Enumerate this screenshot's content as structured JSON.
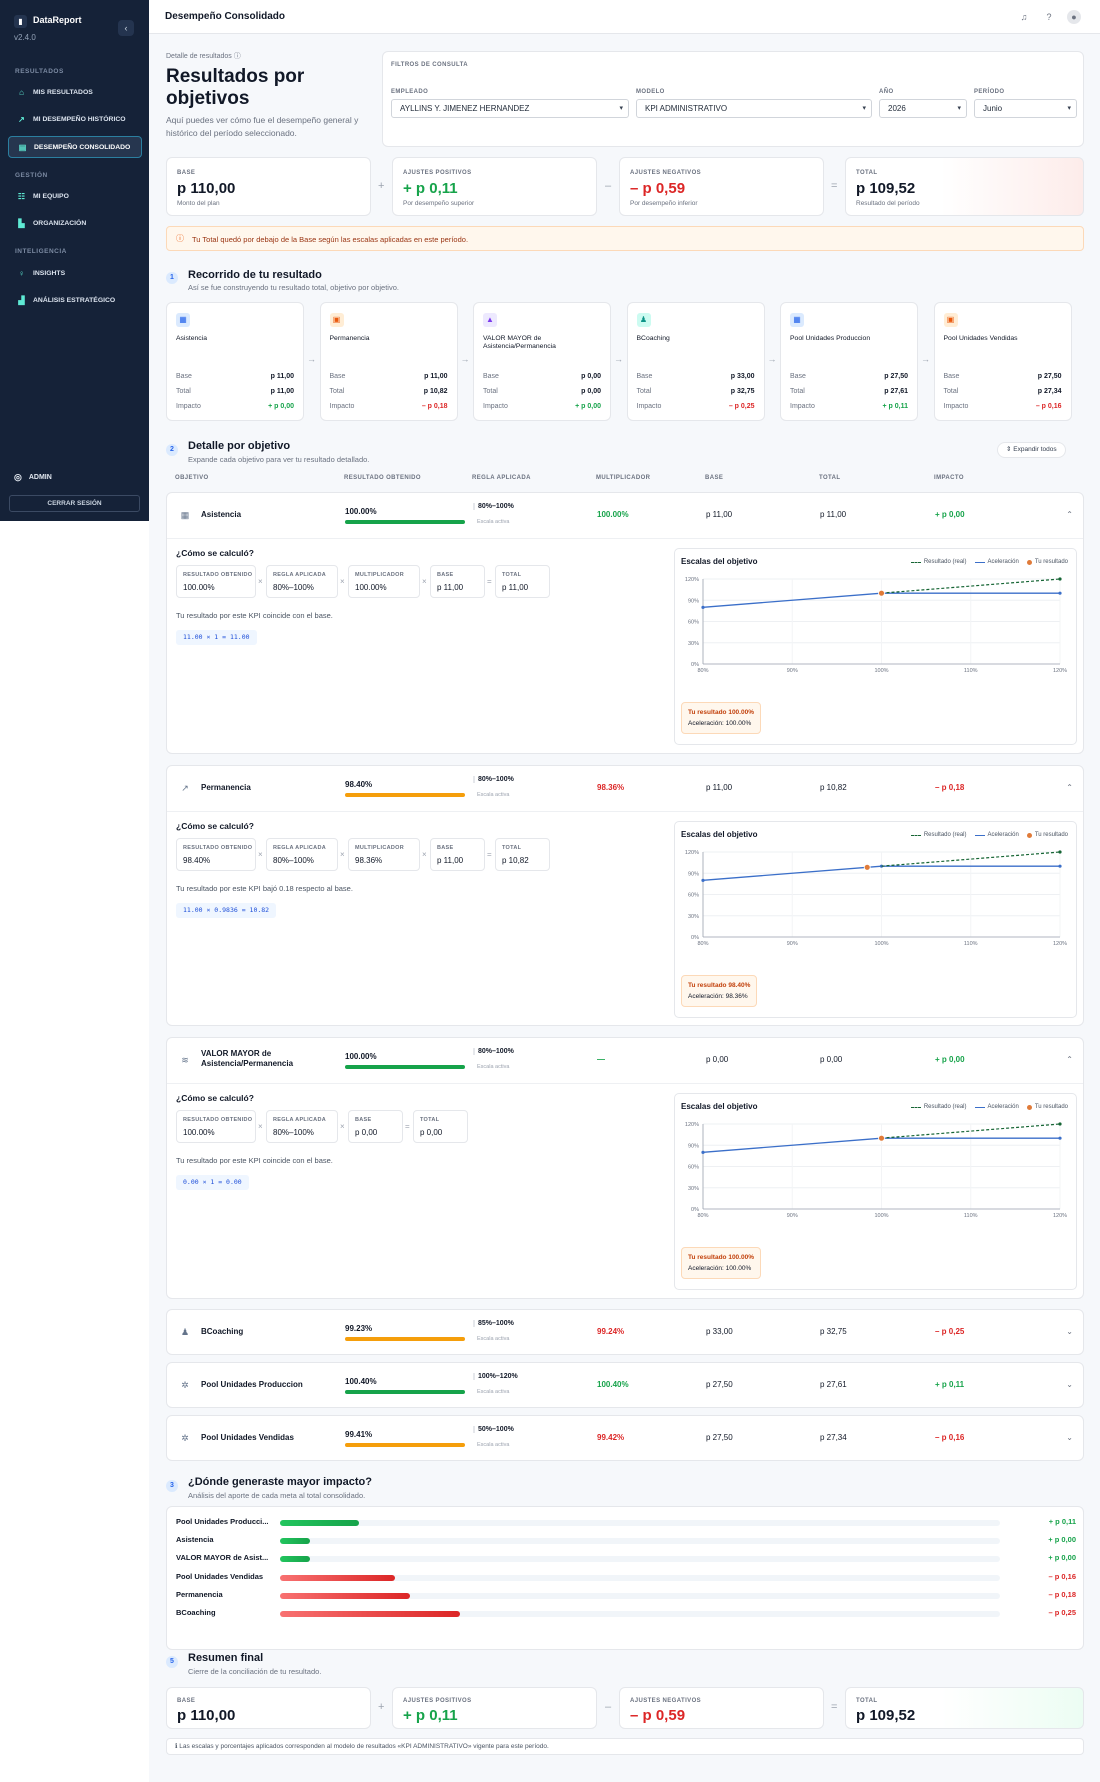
{
  "sidebar": {
    "brand": "DataReport",
    "version": "v2.4.0",
    "sections": [
      "RESULTADOS",
      "GESTIÓN",
      "INTELIGENCIA"
    ],
    "items": [
      {
        "label": "MIS RESULTADOS",
        "icon": "home-icon"
      },
      {
        "label": "MI DESEMPEÑO HISTÓRICO",
        "icon": "trend-icon"
      },
      {
        "label": "DESEMPEÑO CONSOLIDADO",
        "icon": "table-icon",
        "active": true
      },
      {
        "label": "MI EQUIPO",
        "icon": "team-icon"
      },
      {
        "label": "ORGANIZACIÓN",
        "icon": "building-icon"
      },
      {
        "label": "INSIGHTS",
        "icon": "bulb-icon"
      },
      {
        "label": "ANÁLISIS ESTRATÉGICO",
        "icon": "bar-chart-icon"
      }
    ],
    "user": "ADMIN",
    "logout": "CERRAR SESIÓN"
  },
  "topbar": {
    "title": "Desempeño Consolidado"
  },
  "header": {
    "breadcrumb": "Detalle de resultados",
    "title": "Resultados por objetivos",
    "subtitle": "Aquí puedes ver cómo fue el desempeño general y histórico del período seleccionado."
  },
  "filters": {
    "title": "FILTROS DE CONSULTA",
    "empleado_label": "EMPLEADO",
    "empleado_value": "AYLLINS Y. JIMENEZ HERNANDEZ",
    "modelo_label": "MODELO",
    "modelo_value": "KPI ADMINISTRATIVO",
    "anio_label": "AÑO",
    "anio_value": "2026",
    "periodo_label": "PERÍODO",
    "periodo_value": "Junio"
  },
  "summary": {
    "base_label": "BASE",
    "base_value": "p 110,00",
    "base_sub": "Monto del plan",
    "pos_label": "AJUSTES POSITIVOS",
    "pos_value": "+ p 0,11",
    "pos_sub": "Por desempeño superior",
    "neg_label": "AJUSTES NEGATIVOS",
    "neg_value": "– p 0,59",
    "neg_sub": "Por desempeño inferior",
    "total_label": "TOTAL",
    "total_value": "p 109,52",
    "total_sub": "Resultado del período",
    "op_plus": "+",
    "op_minus": "–",
    "op_eq": "="
  },
  "alert": "Tu Total quedó por debajo de la Base según las escalas aplicadas en este período.",
  "journey": {
    "num": "1",
    "title": "Recorrido de tu resultado",
    "subtitle": "Así se fue construyendo tu resultado total, objetivo por objetivo.",
    "row_labels": [
      "Base",
      "Total",
      "Impacto"
    ],
    "steps": [
      {
        "name": "Asistencia",
        "base": "p 11,00",
        "total": "p 11,00",
        "impact": "+ p 0,00",
        "sign": "pos"
      },
      {
        "name": "Permanencia",
        "base": "p 11,00",
        "total": "p 10,82",
        "impact": "– p 0,18",
        "sign": "neg"
      },
      {
        "name": "VALOR MAYOR de Asistencia/Permanencia",
        "base": "p 0,00",
        "total": "p 0,00",
        "impact": "+ p 0,00",
        "sign": "pos"
      },
      {
        "name": "BCoaching",
        "base": "p 33,00",
        "total": "p 32,75",
        "impact": "– p 0,25",
        "sign": "neg"
      },
      {
        "name": "Pool Unidades Produccion",
        "base": "p 27,50",
        "total": "p 27,61",
        "impact": "+ p 0,11",
        "sign": "pos"
      },
      {
        "name": "Pool Unidades Vendidas",
        "base": "p 27,50",
        "total": "p 27,34",
        "impact": "– p 0,16",
        "sign": "neg"
      }
    ]
  },
  "detail": {
    "num": "2",
    "title": "Detalle por objetivo",
    "subtitle": "Expande cada objetivo para ver tu resultado detallado.",
    "expand_all": "Expandir todos",
    "columns": [
      "OBJETIVO",
      "RESULTADO OBTENIDO",
      "REGLA APLICADA",
      "MULTIPLICADOR",
      "BASE",
      "TOTAL",
      "IMPACTO"
    ],
    "rule_sub": "Escala activa",
    "how_title": "¿Cómo se calculó?",
    "pill_labels": {
      "res": "RESULTADO OBTENIDO",
      "rule": "REGLA APLICADA",
      "mult": "MULTIPLICADOR",
      "base": "BASE",
      "total": "TOTAL"
    },
    "chart": {
      "title": "Escalas del objetivo",
      "legend": [
        "Resultado (real)",
        "Aceleración",
        "Tu resultado"
      ],
      "x_ticks": [
        "80%",
        "90%",
        "100%",
        "110%",
        "120%"
      ],
      "y_ticks": [
        "0%",
        "30%",
        "60%",
        "90%",
        "120%"
      ],
      "tag_prefix": "Tu resultado",
      "accel_prefix": "Aceleración:"
    },
    "objectives": [
      {
        "name": "Asistencia",
        "result": "100.00%",
        "rule": "80%–100%",
        "mult": "100.00%",
        "base": "p 11,00",
        "total": "p 11,00",
        "impact": "+ p 0,00",
        "sign": "pos",
        "expanded": true,
        "explain": "Tu resultado por este KPI coincide con el base.",
        "formula": "11.00 × 1 = 11.00",
        "chart_point": 100.0,
        "tag": "Tu resultado 100.00%",
        "accel": "Aceleración: 100.00%"
      },
      {
        "name": "Permanencia",
        "result": "98.40%",
        "rule": "80%–100%",
        "mult": "98.36%",
        "base": "p 11,00",
        "total": "p 10,82",
        "impact": "– p 0,18",
        "sign": "neg",
        "expanded": true,
        "explain": "Tu resultado por este KPI bajó 0.18 respecto al base.",
        "formula": "11.00 × 0.9836 = 10.82",
        "chart_point": 98.4,
        "tag": "Tu resultado 98.40%",
        "accel": "Aceleración: 98.36%"
      },
      {
        "name": "VALOR MAYOR de Asistencia/Permanencia",
        "result": "100.00%",
        "rule": "80%–100%",
        "mult": "—",
        "base": "p 0,00",
        "total": "p 0,00",
        "impact": "+ p 0,00",
        "sign": "pos",
        "expanded": true,
        "explain": "Tu resultado por este KPI coincide con el base.",
        "formula": "0.00 × 1 = 0.00",
        "chart_point": 100.0,
        "tag": "Tu resultado 100.00%",
        "accel": "Aceleración: 100.00%"
      },
      {
        "name": "BCoaching",
        "result": "99.23%",
        "rule": "85%–100%",
        "mult": "99.24%",
        "base": "p 33,00",
        "total": "p 32,75",
        "impact": "– p 0,25",
        "sign": "neg",
        "expanded": false
      },
      {
        "name": "Pool Unidades Produccion",
        "result": "100.40%",
        "rule": "100%–120%",
        "mult": "100.40%",
        "base": "p 27,50",
        "total": "p 27,61",
        "impact": "+ p 0,11",
        "sign": "pos",
        "expanded": false
      },
      {
        "name": "Pool Unidades Vendidas",
        "result": "99.41%",
        "rule": "50%–100%",
        "mult": "99.42%",
        "base": "p 27,50",
        "total": "p 27,34",
        "impact": "– p 0,16",
        "sign": "neg",
        "expanded": false
      }
    ]
  },
  "impact": {
    "num": "3",
    "title": "¿Dónde generaste mayor impacto?",
    "subtitle": "Análisis del aporte de cada meta al total consolidado.",
    "rows": [
      {
        "name": "Pool Unidades Producci...",
        "value": "+ p 0,11",
        "amount": 0.11,
        "sign": "pos"
      },
      {
        "name": "Asistencia",
        "value": "+ p 0,00",
        "amount": 0.0,
        "sign": "pos"
      },
      {
        "name": "VALOR MAYOR de Asist...",
        "value": "+ p 0,00",
        "amount": 0.0,
        "sign": "pos"
      },
      {
        "name": "Pool Unidades Vendidas",
        "value": "– p 0,16",
        "amount": 0.16,
        "sign": "neg"
      },
      {
        "name": "Permanencia",
        "value": "– p 0,18",
        "amount": 0.18,
        "sign": "neg"
      },
      {
        "name": "BCoaching",
        "value": "– p 0,25",
        "amount": 0.25,
        "sign": "neg"
      }
    ]
  },
  "final": {
    "num": "5",
    "title": "Resumen final",
    "subtitle": "Cierre de la conciliación de tu resultado.",
    "note": "Las escalas y porcentajes aplicados corresponden al modelo de resultados «KPI ADMINISTRATIVO» vigente para este período."
  },
  "colors": {
    "positive": "#16a34a",
    "negative": "#dc2626",
    "accent": "#2563eb",
    "sidebar": "#152238"
  }
}
